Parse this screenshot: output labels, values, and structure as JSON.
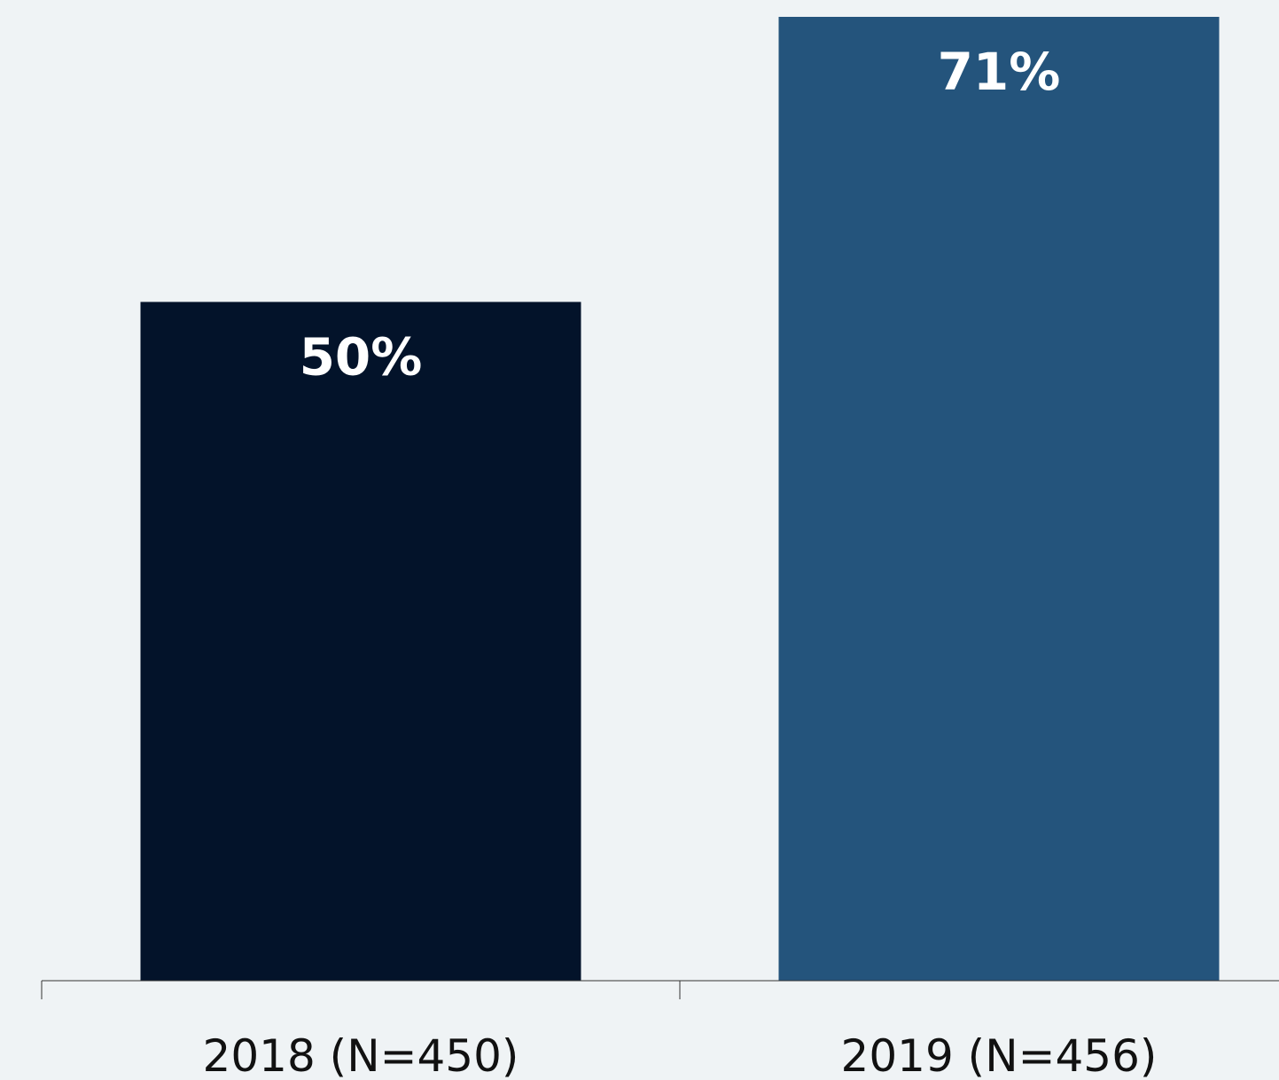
{
  "chart_data": {
    "type": "bar",
    "categories": [
      "2018 (N=450)",
      "2019 (N=456)"
    ],
    "values": [
      50,
      71
    ],
    "value_labels": [
      "50%",
      "71%"
    ],
    "colors": [
      "#03132a",
      "#24547c"
    ]
  }
}
